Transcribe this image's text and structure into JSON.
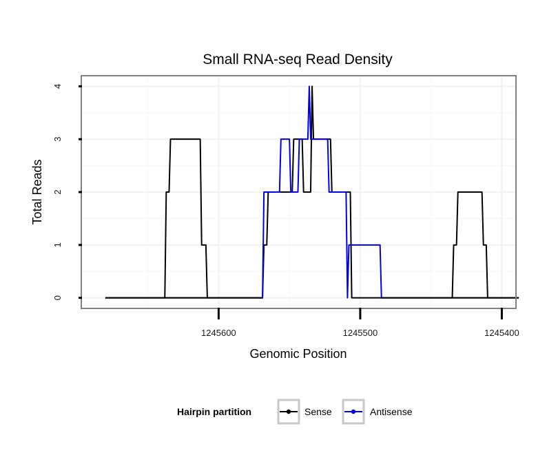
{
  "chart_data": {
    "type": "line",
    "title": "Small RNA-seq Read Density",
    "xlabel": "Genomic Position",
    "ylabel": "Total Reads",
    "xlim": [
      1245697,
      1245390
    ],
    "x_reversed": true,
    "ylim": [
      -0.2,
      4.2
    ],
    "xticks": [
      1245600,
      1245500,
      1245400
    ],
    "xtick_labels": [
      "1245600",
      "1245500",
      "1245400"
    ],
    "yticks": [
      0,
      1,
      2,
      3,
      4
    ],
    "ytick_labels": [
      "0",
      "1",
      "2",
      "3",
      "4"
    ],
    "grid": true,
    "legend_position": "bottom",
    "legend_title": "Hairpin partition",
    "series": [
      {
        "name": "Sense",
        "color": "#000000",
        "points": [
          [
            1245680,
            0
          ],
          [
            1245638,
            0
          ],
          [
            1245637,
            2
          ],
          [
            1245635,
            2
          ],
          [
            1245634,
            3
          ],
          [
            1245613,
            3
          ],
          [
            1245612,
            1
          ],
          [
            1245609,
            1
          ],
          [
            1245608,
            0
          ],
          [
            1245569,
            0
          ],
          [
            1245568,
            1
          ],
          [
            1245566,
            1
          ],
          [
            1245565,
            2
          ],
          [
            1245548,
            2
          ],
          [
            1245547,
            3
          ],
          [
            1245541,
            3
          ],
          [
            1245540,
            2
          ],
          [
            1245535,
            2
          ],
          [
            1245534,
            4
          ],
          [
            1245533,
            3
          ],
          [
            1245521,
            3
          ],
          [
            1245520,
            2
          ],
          [
            1245507,
            2
          ],
          [
            1245506,
            0
          ],
          [
            1245435,
            0
          ],
          [
            1245434,
            1
          ],
          [
            1245432,
            1
          ],
          [
            1245431,
            2
          ],
          [
            1245414,
            2
          ],
          [
            1245413,
            1
          ],
          [
            1245411,
            1
          ],
          [
            1245410,
            0
          ],
          [
            1245388,
            0
          ]
        ]
      },
      {
        "name": "Antisense",
        "color": "#0000ee",
        "points": [
          [
            1245680,
            0
          ],
          [
            1245569,
            0
          ],
          [
            1245568,
            2
          ],
          [
            1245557,
            2
          ],
          [
            1245556,
            3
          ],
          [
            1245550,
            3
          ],
          [
            1245549,
            2
          ],
          [
            1245544,
            2
          ],
          [
            1245543,
            3
          ],
          [
            1245537,
            3
          ],
          [
            1245536,
            4
          ],
          [
            1245535,
            3
          ],
          [
            1245523,
            3
          ],
          [
            1245522,
            2
          ],
          [
            1245510,
            2
          ],
          [
            1245509,
            0
          ],
          [
            1245508,
            1
          ],
          [
            1245486,
            1
          ],
          [
            1245485,
            0
          ],
          [
            1245388,
            0
          ]
        ]
      }
    ],
    "black_over_blue": [
      [
        [
          1245680,
          0
        ],
        [
          1245569,
          0
        ]
      ],
      [
        [
          1245485,
          0
        ],
        [
          1245388,
          0
        ]
      ]
    ]
  }
}
